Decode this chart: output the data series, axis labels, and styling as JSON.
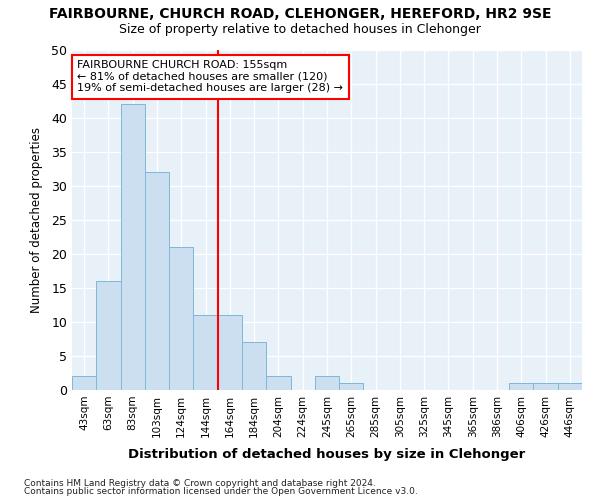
{
  "title": "FAIRBOURNE, CHURCH ROAD, CLEHONGER, HEREFORD, HR2 9SE",
  "subtitle": "Size of property relative to detached houses in Clehonger",
  "xlabel": "Distribution of detached houses by size in Clehonger",
  "ylabel": "Number of detached properties",
  "categories": [
    "43sqm",
    "63sqm",
    "83sqm",
    "103sqm",
    "124sqm",
    "144sqm",
    "164sqm",
    "184sqm",
    "204sqm",
    "224sqm",
    "245sqm",
    "265sqm",
    "285sqm",
    "305sqm",
    "325sqm",
    "345sqm",
    "365sqm",
    "386sqm",
    "406sqm",
    "426sqm",
    "446sqm"
  ],
  "values": [
    2,
    16,
    42,
    32,
    21,
    11,
    11,
    7,
    2,
    0,
    2,
    1,
    0,
    0,
    0,
    0,
    0,
    0,
    1,
    1,
    1
  ],
  "bar_color": "#ccdff0",
  "bar_edge_color": "#7eb8d8",
  "red_line_x": 5.5,
  "ylim": [
    0,
    50
  ],
  "yticks": [
    0,
    5,
    10,
    15,
    20,
    25,
    30,
    35,
    40,
    45,
    50
  ],
  "annotation_line1": "FAIRBOURNE CHURCH ROAD: 155sqm",
  "annotation_line2": "← 81% of detached houses are smaller (120)",
  "annotation_line3": "19% of semi-detached houses are larger (28) →",
  "footnote1": "Contains HM Land Registry data © Crown copyright and database right 2024.",
  "footnote2": "Contains public sector information licensed under the Open Government Licence v3.0.",
  "bg_color": "#ffffff",
  "plot_bg_color": "#e8f0f8",
  "grid_color": "#ffffff"
}
